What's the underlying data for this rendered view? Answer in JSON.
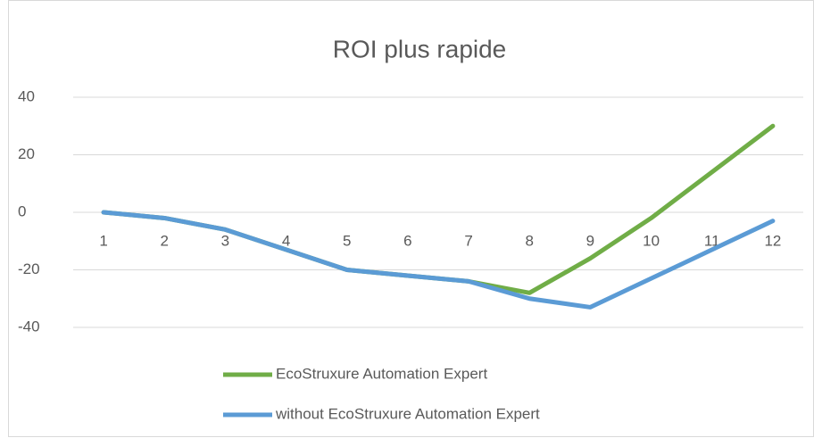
{
  "chart_data": {
    "type": "line",
    "title": "ROI plus rapide",
    "categories": [
      "1",
      "2",
      "3",
      "4",
      "5",
      "6",
      "7",
      "8",
      "9",
      "10",
      "11",
      "12"
    ],
    "series": [
      {
        "name": "EcoStruxure Automation Expert",
        "color": "#70ad47",
        "values": [
          0,
          -2,
          -6,
          -13,
          -20,
          -22,
          -24,
          -28,
          -16,
          -2,
          14,
          30
        ]
      },
      {
        "name": "without EcoStruxure Automation Expert",
        "color": "#5b9bd5",
        "values": [
          0,
          -2,
          -6,
          -13,
          -20,
          -22,
          -24,
          -30,
          -33,
          -23,
          -13,
          -3
        ]
      }
    ],
    "ylim": [
      -40,
      40
    ],
    "yticks": [
      -40,
      -20,
      0,
      20,
      40
    ],
    "grid": true,
    "legend": "bottom"
  }
}
